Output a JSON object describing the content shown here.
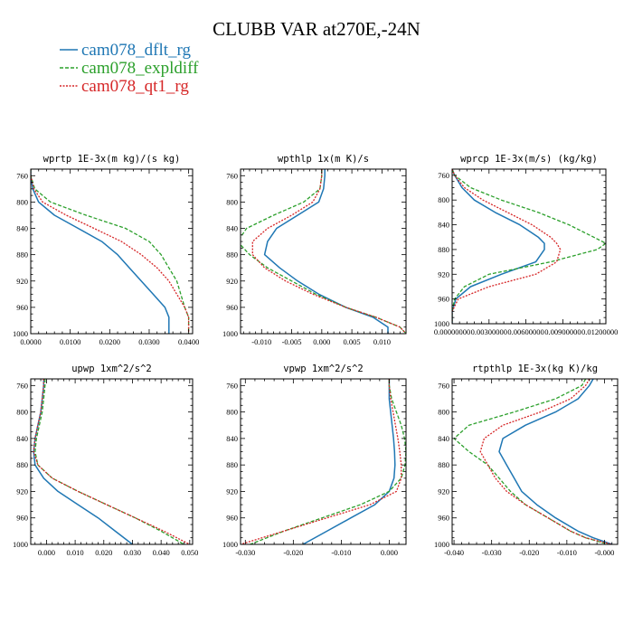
{
  "figure": {
    "title": "CLUBB VAR at270E,-24N"
  },
  "legend": [
    {
      "name": "cam078_dflt_rg",
      "color": "#1f77b4"
    },
    {
      "name": "cam078_expldiff",
      "color": "#2ca02c"
    },
    {
      "name": "cam078_qt1_rg",
      "color": "#d62728"
    }
  ],
  "chart_data": [
    {
      "type": "line",
      "title": "wprtp  1E-3x(m kg)/(s kg)",
      "xlim": [
        0,
        0.041
      ],
      "ylim": [
        1000,
        750
      ],
      "xticks": [
        0,
        0.01,
        0.02,
        0.03,
        0.04
      ],
      "xticklabels": [
        "0.0000",
        "0.0100",
        "0.0200",
        "0.0300",
        "0.0400"
      ],
      "yticks": [
        760,
        800,
        840,
        880,
        920,
        960,
        1000
      ],
      "yticklabels": [
        "760",
        "800",
        "840",
        "880",
        "920",
        "960",
        "1000"
      ],
      "y": [
        750,
        760,
        780,
        800,
        820,
        840,
        860,
        880,
        900,
        920,
        940,
        960,
        975,
        990,
        1000
      ],
      "series": [
        {
          "name": "cam078_dflt_rg",
          "values": [
            0.0,
            0.0,
            0.0005,
            0.002,
            0.006,
            0.012,
            0.018,
            0.022,
            0.025,
            0.028,
            0.031,
            0.034,
            0.035,
            0.035,
            0.035
          ]
        },
        {
          "name": "cam078_expldiff",
          "values": [
            0.0,
            0.0,
            0.001,
            0.005,
            0.014,
            0.024,
            0.03,
            0.033,
            0.035,
            0.037,
            0.038,
            0.039,
            0.04,
            0.04,
            0.04
          ]
        },
        {
          "name": "cam078_qt1_rg",
          "values": [
            0.0,
            0.0,
            0.0008,
            0.003,
            0.009,
            0.016,
            0.023,
            0.028,
            0.032,
            0.035,
            0.037,
            0.039,
            0.04,
            0.04,
            0.04
          ]
        }
      ]
    },
    {
      "type": "line",
      "title": "wpthlp  1x(m K)/s",
      "xlim": [
        -0.0135,
        0.014
      ],
      "ylim": [
        1000,
        750
      ],
      "xticks": [
        -0.01,
        -0.005,
        0,
        0.005,
        0.01
      ],
      "xticklabels": [
        "-0.010",
        "-0.005",
        "0.000",
        "0.005",
        "0.010"
      ],
      "yticks": [
        760,
        800,
        840,
        880,
        920,
        960,
        1000
      ],
      "yticklabels": [
        "760",
        "800",
        "840",
        "880",
        "920",
        "960",
        "1000"
      ],
      "y": [
        750,
        760,
        780,
        800,
        820,
        840,
        860,
        880,
        900,
        920,
        940,
        960,
        975,
        990,
        1000
      ],
      "series": [
        {
          "name": "cam078_dflt_rg",
          "values": [
            0.0005,
            0.0005,
            0.0003,
            -0.0005,
            -0.004,
            -0.0075,
            -0.009,
            -0.0095,
            -0.007,
            -0.004,
            -0.0005,
            0.004,
            0.0085,
            0.011,
            0.011
          ]
        },
        {
          "name": "cam078_expldiff",
          "values": [
            0.0,
            0.0,
            -0.0003,
            -0.003,
            -0.008,
            -0.0125,
            -0.014,
            -0.012,
            -0.009,
            -0.005,
            -0.001,
            0.004,
            0.009,
            0.013,
            0.014
          ]
        },
        {
          "name": "cam078_qt1_rg",
          "values": [
            0.0,
            0.0,
            -0.0003,
            -0.0015,
            -0.005,
            -0.009,
            -0.0115,
            -0.0115,
            -0.0095,
            -0.006,
            -0.0015,
            0.004,
            0.009,
            0.013,
            0.014
          ]
        }
      ]
    },
    {
      "type": "line",
      "title": "wprcp  1E-3x(m/s) (kg/kg)",
      "xlim": [
        0,
        0.0125
      ],
      "ylim": [
        1000,
        750
      ],
      "xticks": [
        0,
        0.003,
        0.006,
        0.009,
        0.012
      ],
      "xticklabels": [
        "0.00000000",
        "0.00300000",
        "0.00600000",
        "0.00900000",
        "0.01200000"
      ],
      "yticks": [
        760,
        800,
        840,
        880,
        920,
        960,
        1000
      ],
      "yticklabels": [
        "760",
        "800",
        "840",
        "880",
        "920",
        "960",
        "1000"
      ],
      "y": [
        750,
        760,
        780,
        800,
        820,
        840,
        860,
        870,
        880,
        900,
        920,
        940,
        960,
        980,
        1000
      ],
      "series": [
        {
          "name": "cam078_dflt_rg",
          "values": [
            0.0,
            0.0002,
            0.0008,
            0.0018,
            0.0035,
            0.0055,
            0.007,
            0.0075,
            0.0075,
            0.0068,
            0.004,
            0.0015,
            0.0003,
            0.0,
            0.0
          ]
        },
        {
          "name": "cam078_expldiff",
          "values": [
            0.0,
            0.0002,
            0.0015,
            0.004,
            0.007,
            0.0095,
            0.0115,
            0.0125,
            0.0118,
            0.008,
            0.003,
            0.001,
            0.0002,
            0.0,
            0.0
          ]
        },
        {
          "name": "cam078_qt1_rg",
          "values": [
            0.0,
            0.0002,
            0.001,
            0.0025,
            0.0045,
            0.0065,
            0.008,
            0.0085,
            0.0088,
            0.0085,
            0.0068,
            0.003,
            0.0005,
            0.0,
            0.0
          ]
        }
      ]
    },
    {
      "type": "line",
      "title": "upwp  1xm^2/s^2",
      "xlim": [
        -0.0055,
        0.051
      ],
      "ylim": [
        1000,
        750
      ],
      "xticks": [
        0,
        0.01,
        0.02,
        0.03,
        0.04,
        0.05
      ],
      "xticklabels": [
        "0.000",
        "0.010",
        "0.020",
        "0.030",
        "0.040",
        "0.050"
      ],
      "yticks": [
        760,
        800,
        840,
        880,
        920,
        960,
        1000
      ],
      "yticklabels": [
        "760",
        "800",
        "840",
        "880",
        "920",
        "960",
        "1000"
      ],
      "y": [
        750,
        760,
        780,
        800,
        820,
        840,
        860,
        880,
        900,
        920,
        940,
        960,
        980,
        1000
      ],
      "series": [
        {
          "name": "cam078_dflt_rg",
          "values": [
            -0.001,
            -0.001,
            -0.0015,
            -0.002,
            -0.003,
            -0.004,
            -0.0045,
            -0.004,
            -0.001,
            0.004,
            0.011,
            0.018,
            0.024,
            0.03
          ]
        },
        {
          "name": "cam078_expldiff",
          "values": [
            -0.0005,
            -0.0005,
            -0.001,
            -0.0015,
            -0.0025,
            -0.0035,
            -0.004,
            -0.003,
            0.002,
            0.011,
            0.021,
            0.031,
            0.04,
            0.048
          ]
        },
        {
          "name": "cam078_qt1_rg",
          "values": [
            -0.001,
            -0.001,
            -0.0015,
            -0.002,
            -0.003,
            -0.004,
            -0.0045,
            -0.003,
            0.002,
            0.011,
            0.021,
            0.031,
            0.041,
            0.05
          ]
        }
      ]
    },
    {
      "type": "line",
      "title": "vpwp  1xm^2/s^2",
      "xlim": [
        -0.031,
        0.0035
      ],
      "ylim": [
        1000,
        750
      ],
      "xticks": [
        -0.03,
        -0.02,
        -0.01,
        0
      ],
      "xticklabels": [
        "-0.030",
        "-0.020",
        "-0.010",
        "0.000"
      ],
      "yticks": [
        760,
        800,
        840,
        880,
        920,
        960,
        1000
      ],
      "yticklabels": [
        "760",
        "800",
        "840",
        "880",
        "920",
        "960",
        "1000"
      ],
      "y": [
        750,
        760,
        780,
        800,
        820,
        840,
        860,
        880,
        900,
        920,
        940,
        960,
        980,
        1000
      ],
      "series": [
        {
          "name": "cam078_dflt_rg",
          "values": [
            0.0,
            0.0,
            0.0,
            0.0003,
            0.0006,
            0.0009,
            0.0011,
            0.0012,
            0.001,
            0.0,
            -0.003,
            -0.008,
            -0.013,
            -0.018
          ]
        },
        {
          "name": "cam078_expldiff",
          "values": [
            0.0,
            0.0,
            0.0005,
            0.0015,
            0.0025,
            0.0032,
            0.0035,
            0.0033,
            0.0025,
            0.0,
            -0.006,
            -0.014,
            -0.022,
            -0.029
          ]
        },
        {
          "name": "cam078_qt1_rg",
          "values": [
            0.0,
            0.0,
            0.0003,
            0.0008,
            0.0013,
            0.0018,
            0.0022,
            0.0025,
            0.0025,
            0.0015,
            -0.004,
            -0.013,
            -0.022,
            -0.031
          ]
        }
      ]
    },
    {
      "type": "line",
      "title": "rtpthlp  1E-3x(kg K)/kg",
      "xlim": [
        -0.0405,
        0.0035
      ],
      "ylim": [
        1000,
        750
      ],
      "xticks": [
        -0.04,
        -0.03,
        -0.02,
        -0.01,
        0
      ],
      "xticklabels": [
        "-0.040",
        "-0.030",
        "-0.020",
        "-0.010",
        "-0.000"
      ],
      "yticks": [
        760,
        800,
        840,
        880,
        920,
        960,
        1000
      ],
      "yticklabels": [
        "760",
        "800",
        "840",
        "880",
        "920",
        "960",
        "1000"
      ],
      "y": [
        750,
        760,
        780,
        800,
        820,
        840,
        860,
        880,
        900,
        920,
        940,
        960,
        980,
        990,
        1000
      ],
      "series": [
        {
          "name": "cam078_dflt_rg",
          "values": [
            -0.003,
            -0.004,
            -0.007,
            -0.013,
            -0.021,
            -0.027,
            -0.028,
            -0.026,
            -0.024,
            -0.022,
            -0.018,
            -0.013,
            -0.007,
            -0.003,
            0.002
          ]
        },
        {
          "name": "cam078_expldiff",
          "values": [
            -0.005,
            -0.006,
            -0.013,
            -0.024,
            -0.036,
            -0.04,
            -0.036,
            -0.031,
            -0.028,
            -0.025,
            -0.021,
            -0.015,
            -0.009,
            -0.005,
            0.001
          ]
        },
        {
          "name": "cam078_qt1_rg",
          "values": [
            -0.004,
            -0.005,
            -0.009,
            -0.017,
            -0.027,
            -0.032,
            -0.033,
            -0.031,
            -0.029,
            -0.026,
            -0.021,
            -0.015,
            -0.009,
            -0.005,
            0.002
          ]
        }
      ]
    }
  ]
}
